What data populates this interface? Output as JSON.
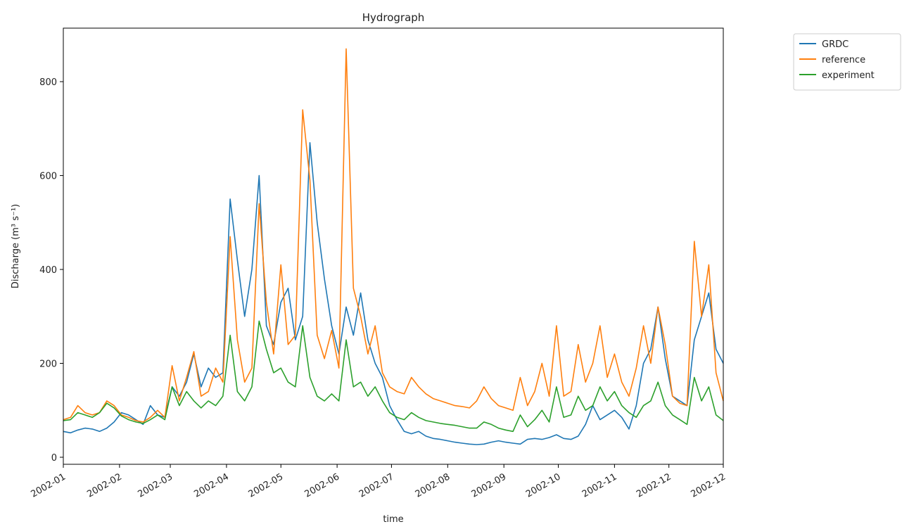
{
  "chart_data": {
    "type": "line",
    "title": "Hydrograph",
    "x_label": "time",
    "y_label": "Discharge (m³ s⁻¹)",
    "xlim": [
      0,
      364
    ],
    "ylim": [
      -15,
      914
    ],
    "xticks": [
      {
        "value": 0,
        "label": "2002-01"
      },
      {
        "value": 31,
        "label": "2002-02"
      },
      {
        "value": 59,
        "label": "2002-03"
      },
      {
        "value": 90,
        "label": "2002-04"
      },
      {
        "value": 120,
        "label": "2002-05"
      },
      {
        "value": 151,
        "label": "2002-06"
      },
      {
        "value": 181,
        "label": "2002-07"
      },
      {
        "value": 212,
        "label": "2002-08"
      },
      {
        "value": 243,
        "label": "2002-09"
      },
      {
        "value": 273,
        "label": "2002-10"
      },
      {
        "value": 304,
        "label": "2002-11"
      },
      {
        "value": 334,
        "label": "2002-12"
      },
      {
        "value": 364,
        "label": "2002-12"
      }
    ],
    "yticks": [
      0,
      200,
      400,
      600,
      800
    ],
    "legend": "outside-upper-right",
    "x": [
      0,
      4,
      8,
      12,
      16,
      20,
      24,
      28,
      32,
      36,
      40,
      44,
      48,
      52,
      56,
      60,
      64,
      68,
      72,
      76,
      80,
      84,
      88,
      92,
      96,
      100,
      104,
      108,
      112,
      116,
      120,
      124,
      128,
      132,
      136,
      140,
      144,
      148,
      152,
      156,
      160,
      164,
      168,
      172,
      176,
      180,
      184,
      188,
      192,
      196,
      200,
      204,
      208,
      212,
      216,
      220,
      224,
      228,
      232,
      236,
      240,
      244,
      248,
      252,
      256,
      260,
      264,
      268,
      272,
      276,
      280,
      284,
      288,
      292,
      296,
      300,
      304,
      308,
      312,
      316,
      320,
      324,
      328,
      332,
      336,
      340,
      344,
      348,
      352,
      356,
      360,
      364
    ],
    "series": [
      {
        "name": "GRDC",
        "color": "#1f77b4",
        "values": [
          55,
          52,
          58,
          62,
          60,
          55,
          62,
          75,
          95,
          90,
          80,
          70,
          110,
          90,
          85,
          150,
          130,
          160,
          220,
          150,
          190,
          170,
          180,
          550,
          420,
          300,
          400,
          600,
          280,
          240,
          330,
          360,
          250,
          300,
          670,
          500,
          380,
          280,
          220,
          320,
          260,
          350,
          250,
          200,
          170,
          110,
          80,
          55,
          50,
          55,
          45,
          40,
          38,
          35,
          32,
          30,
          28,
          27,
          28,
          32,
          35,
          32,
          30,
          28,
          38,
          40,
          38,
          42,
          48,
          40,
          38,
          45,
          70,
          110,
          80,
          90,
          100,
          85,
          60,
          110,
          200,
          230,
          320,
          210,
          130,
          120,
          110,
          250,
          300,
          350,
          230,
          200
        ]
      },
      {
        "name": "reference",
        "color": "#ff7f0e",
        "values": [
          80,
          85,
          110,
          95,
          90,
          95,
          120,
          110,
          90,
          85,
          78,
          75,
          85,
          100,
          85,
          195,
          120,
          170,
          225,
          130,
          140,
          190,
          160,
          470,
          250,
          160,
          190,
          540,
          330,
          220,
          410,
          240,
          260,
          740,
          590,
          260,
          210,
          270,
          190,
          870,
          360,
          300,
          220,
          280,
          180,
          150,
          140,
          135,
          170,
          150,
          135,
          125,
          120,
          115,
          110,
          108,
          105,
          120,
          150,
          125,
          110,
          105,
          100,
          170,
          110,
          140,
          200,
          130,
          280,
          130,
          140,
          240,
          160,
          200,
          280,
          170,
          220,
          160,
          130,
          190,
          280,
          200,
          320,
          240,
          130,
          115,
          110,
          460,
          300,
          410,
          180,
          120
        ]
      },
      {
        "name": "experiment",
        "color": "#2ca02c",
        "values": [
          78,
          80,
          95,
          90,
          85,
          95,
          115,
          105,
          88,
          80,
          75,
          72,
          80,
          90,
          80,
          150,
          110,
          140,
          120,
          105,
          120,
          110,
          130,
          260,
          140,
          120,
          150,
          290,
          230,
          180,
          190,
          160,
          150,
          280,
          170,
          130,
          120,
          135,
          120,
          250,
          150,
          160,
          130,
          150,
          120,
          95,
          85,
          80,
          95,
          85,
          78,
          75,
          72,
          70,
          68,
          65,
          62,
          62,
          75,
          70,
          62,
          58,
          55,
          90,
          65,
          80,
          100,
          75,
          150,
          85,
          90,
          130,
          100,
          110,
          150,
          120,
          140,
          110,
          95,
          85,
          110,
          120,
          160,
          110,
          90,
          80,
          70,
          170,
          120,
          150,
          90,
          78
        ]
      }
    ]
  }
}
